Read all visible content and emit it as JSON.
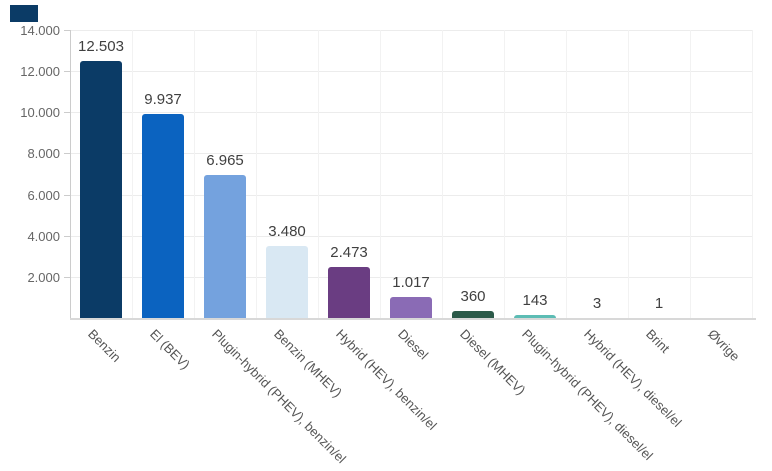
{
  "corner_swatch": {
    "color": "#0b3b66"
  },
  "chart_data": {
    "type": "bar",
    "title": "",
    "xlabel": "",
    "ylabel": "",
    "categories": [
      "Benzin",
      "El (BEV)",
      "Plugin-hybrid (PHEV), benzin/el",
      "Benzin (MHEV)",
      "Hybrid (HEV), benzin/el",
      "Diesel",
      "Diesel (MHEV)",
      "Plugin-hybrid (PHEV), diesel/el",
      "Hybrid (HEV), diesel/el",
      "Brint",
      "Øvrige"
    ],
    "values": [
      12503,
      9937,
      6965,
      3480,
      2473,
      1017,
      360,
      143,
      3,
      1,
      0
    ],
    "value_labels": [
      "12.503",
      "9.937",
      "6.965",
      "3.480",
      "2.473",
      "1.017",
      "360",
      "143",
      "3",
      "1",
      ""
    ],
    "bar_colors": [
      "#0b3b66",
      "#0b63c0",
      "#74a2de",
      "#d9e8f3",
      "#6a3d82",
      "#8a6bb5",
      "#2b5a49",
      "#5cbcb4",
      "#cccccc",
      "#cccccc",
      "#cccccc"
    ],
    "ylim": [
      0,
      14000
    ],
    "y_tick_values": [
      14000,
      12000,
      10000,
      8000,
      6000,
      4000,
      2000
    ],
    "y_tick_labels": [
      "14.000",
      "12.000",
      "10.000",
      "8.000",
      "6.000",
      "4.000",
      "2.000"
    ],
    "grid": true,
    "legend": false,
    "x_label_rotation_deg": 45
  },
  "colors": {
    "axis_line": "#cccccc",
    "baseline": "#d8d8d8",
    "grid_h": "#ececec",
    "grid_v": "#f2f2f2",
    "tick": "#cccccc",
    "value_label": "#404040",
    "x_label": "#555555",
    "y_label": "#666666"
  }
}
